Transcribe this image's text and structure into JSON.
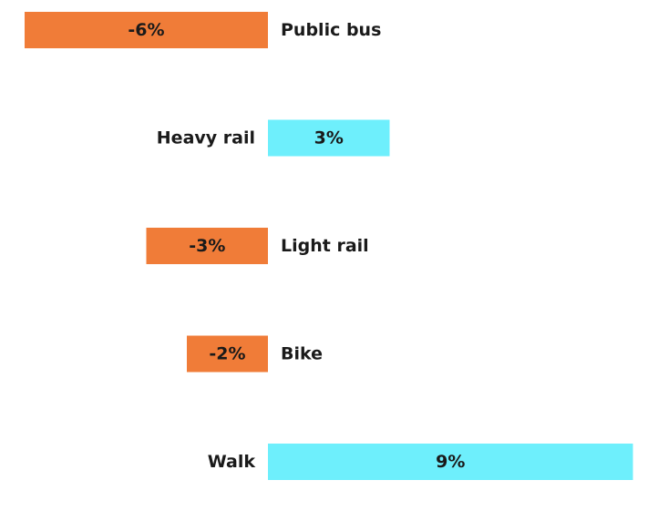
{
  "chart_data": {
    "type": "bar",
    "orientation": "horizontal",
    "categories": [
      "Public bus",
      "Heavy rail",
      "Light rail",
      "Bike",
      "Walk"
    ],
    "values": [
      -6,
      3,
      -3,
      -2,
      9
    ],
    "value_labels": [
      "-6%",
      "3%",
      "-3%",
      "-2%",
      "9%"
    ],
    "unit": "%",
    "xlim": [
      -6.1,
      9.1
    ],
    "grid": false,
    "legend": "none",
    "colors": {
      "negative": "#F07C38",
      "positive": "#6EEFFC"
    }
  }
}
